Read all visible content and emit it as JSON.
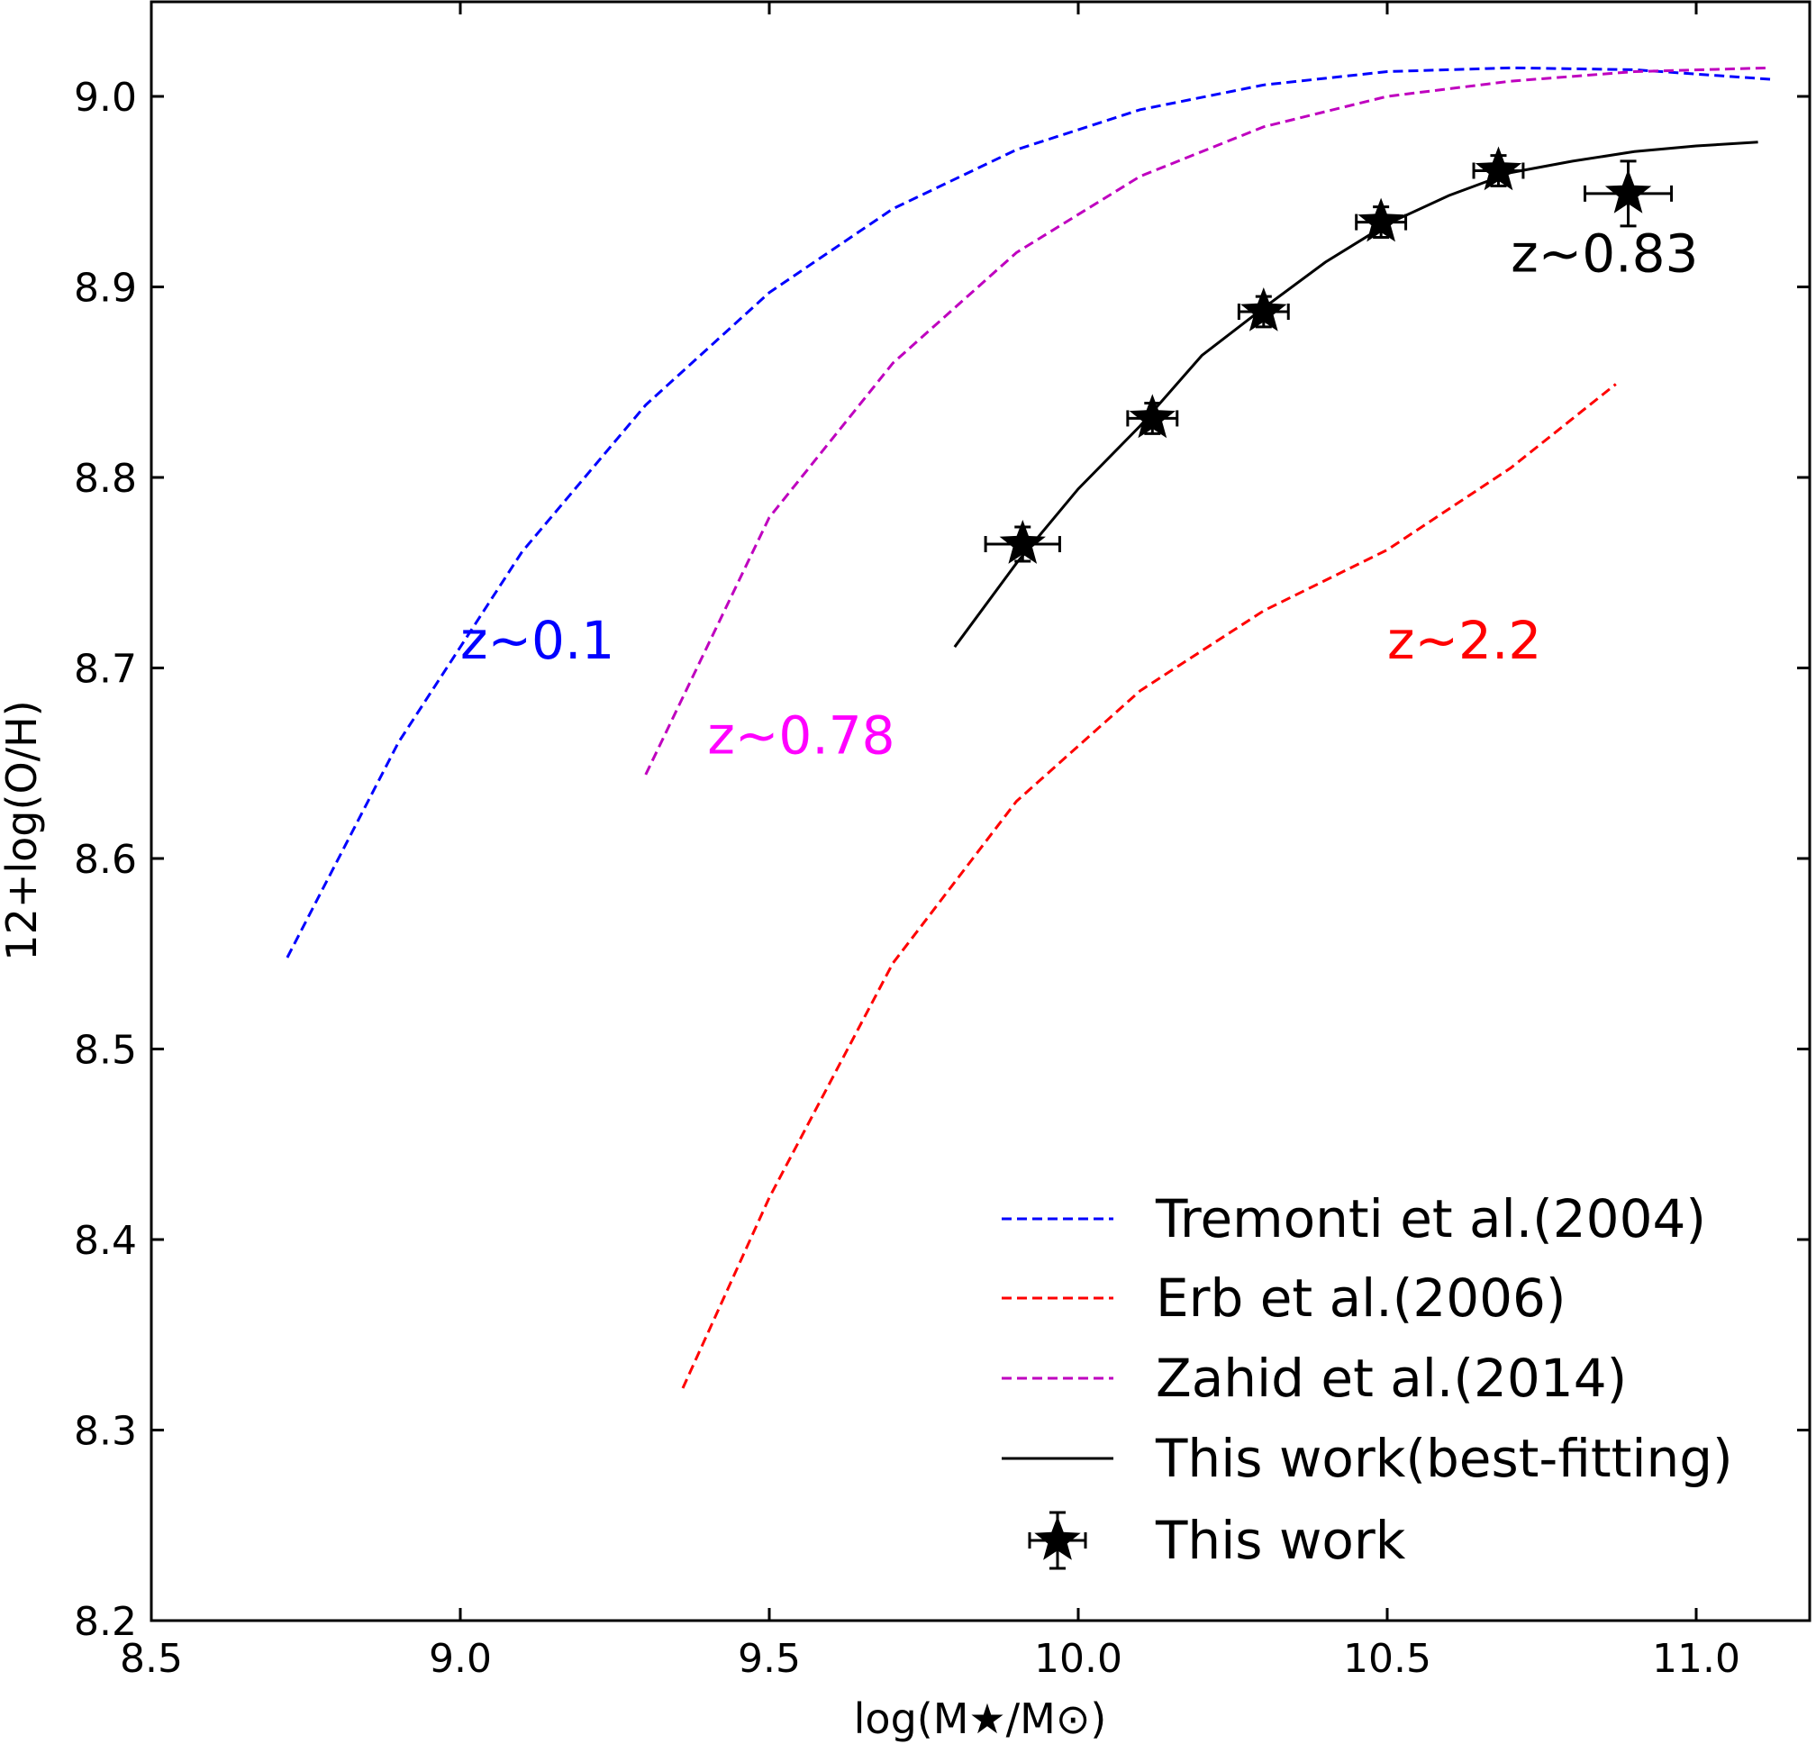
{
  "chart_data": {
    "type": "line",
    "xlabel": "log(M★/M⊙)",
    "ylabel": "12+log(O/H)",
    "xlim": [
      8.5,
      11.2
    ],
    "ylim": [
      8.2,
      9.05
    ],
    "xticks": [
      "8.5",
      "9.0",
      "9.5",
      "10.0",
      "10.5",
      "11.0"
    ],
    "yticks": [
      "8.2",
      "8.3",
      "8.4",
      "8.5",
      "8.6",
      "8.7",
      "8.8",
      "8.9",
      "9.0"
    ],
    "grid": false,
    "legend_position": "lower-right",
    "series": [
      {
        "name": "Tremonti et al.(2004)",
        "style": "dashed",
        "color": "#0000ff",
        "x": [
          8.72,
          8.9,
          9.1,
          9.3,
          9.5,
          9.7,
          9.9,
          10.1,
          10.3,
          10.5,
          10.7,
          10.9,
          11.12
        ],
        "y": [
          8.548,
          8.661,
          8.761,
          8.838,
          8.897,
          8.941,
          8.972,
          8.993,
          9.006,
          9.013,
          9.015,
          9.014,
          9.009
        ]
      },
      {
        "name": "Erb et al.(2006)",
        "style": "dashed",
        "color": "#ff0000",
        "x": [
          9.36,
          9.5,
          9.7,
          9.9,
          10.1,
          10.3,
          10.5,
          10.7,
          10.87
        ],
        "y": [
          8.322,
          8.422,
          8.545,
          8.63,
          8.688,
          8.73,
          8.762,
          8.805,
          8.849
        ]
      },
      {
        "name": "Zahid et al.(2014)",
        "style": "dashed",
        "color": "#bf00bf",
        "x": [
          9.3,
          9.5,
          9.7,
          9.9,
          10.1,
          10.3,
          10.5,
          10.7,
          10.9,
          11.12
        ],
        "y": [
          8.644,
          8.779,
          8.86,
          8.918,
          8.958,
          8.984,
          9.0,
          9.008,
          9.013,
          9.015
        ]
      },
      {
        "name": "This work(best-fitting)",
        "style": "solid",
        "color": "#000000",
        "x": [
          9.8,
          9.9,
          10.0,
          10.1,
          10.2,
          10.3,
          10.4,
          10.5,
          10.6,
          10.7,
          10.8,
          10.9,
          11.0,
          11.1
        ],
        "y": [
          8.711,
          8.755,
          8.794,
          8.827,
          8.864,
          8.889,
          8.913,
          8.933,
          8.948,
          8.96,
          8.966,
          8.971,
          8.974,
          8.976
        ]
      },
      {
        "name": "This work",
        "style": "star-errorbar",
        "color": "#000000",
        "points": [
          {
            "x": 9.91,
            "y": 8.765,
            "xerr": 0.06,
            "yerr": 0.009
          },
          {
            "x": 10.12,
            "y": 8.831,
            "xerr": 0.04,
            "yerr": 0.008
          },
          {
            "x": 10.3,
            "y": 8.887,
            "xerr": 0.04,
            "yerr": 0.008
          },
          {
            "x": 10.49,
            "y": 8.934,
            "xerr": 0.04,
            "yerr": 0.008
          },
          {
            "x": 10.68,
            "y": 8.961,
            "xerr": 0.04,
            "yerr": 0.008
          },
          {
            "x": 10.89,
            "y": 8.949,
            "xerr": 0.07,
            "yerr": 0.017
          }
        ]
      }
    ],
    "annotations": [
      {
        "text": "z~0.1",
        "color": "#0000ff",
        "x": 9.0,
        "y": 8.705
      },
      {
        "text": "z~0.78",
        "color": "#ff00ff",
        "x": 9.4,
        "y": 8.655
      },
      {
        "text": "z~2.2",
        "color": "#ff0000",
        "x": 10.5,
        "y": 8.705
      },
      {
        "text": "z~0.83",
        "color": "#000000",
        "x": 10.7,
        "y": 8.908
      }
    ]
  }
}
